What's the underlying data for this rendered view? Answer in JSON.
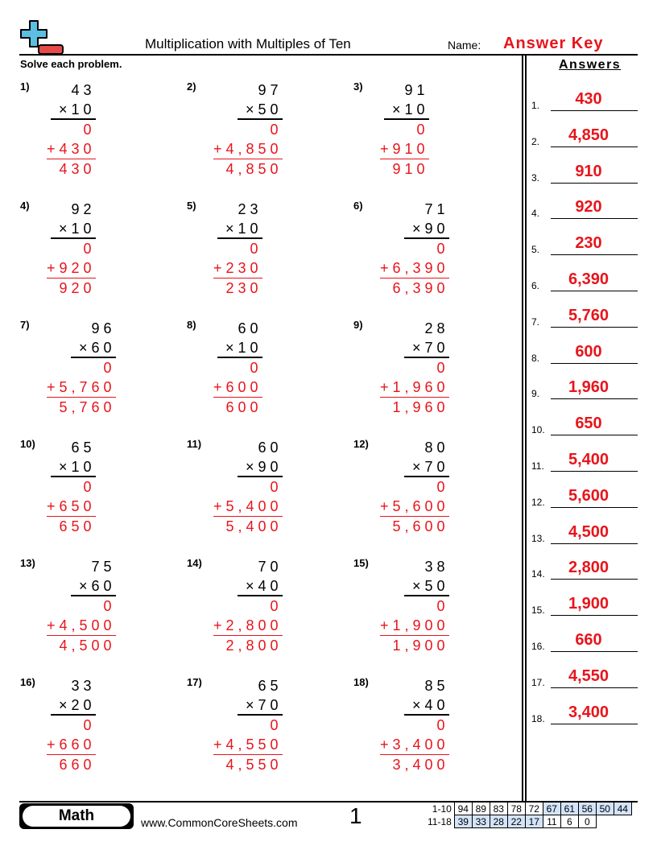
{
  "header": {
    "title": "Multiplication with Multiples of Ten",
    "name_label": "Name:",
    "name_value": "Answer Key",
    "instructions": "Solve each problem.",
    "logo_icon": "plus-minus-logo",
    "colors": {
      "accent": "#e8141b",
      "logo_blue": "#5bbfe3",
      "score_blue": "#d3e3fa"
    }
  },
  "problems": [
    {
      "label": "1)",
      "top": "43",
      "mult": "×10",
      "zero": "0",
      "partial": "+430",
      "answer": "430"
    },
    {
      "label": "2)",
      "top": "97",
      "mult": "×50",
      "zero": "0",
      "partial": "+4,850",
      "answer": "4,850"
    },
    {
      "label": "3)",
      "top": "91",
      "mult": "×10",
      "zero": "0",
      "partial": "+910",
      "answer": "910"
    },
    {
      "label": "4)",
      "top": "92",
      "mult": "×10",
      "zero": "0",
      "partial": "+920",
      "answer": "920"
    },
    {
      "label": "5)",
      "top": "23",
      "mult": "×10",
      "zero": "0",
      "partial": "+230",
      "answer": "230"
    },
    {
      "label": "6)",
      "top": "71",
      "mult": "×90",
      "zero": "0",
      "partial": "+6,390",
      "answer": "6,390"
    },
    {
      "label": "7)",
      "top": "96",
      "mult": "×60",
      "zero": "0",
      "partial": "+5,760",
      "answer": "5,760"
    },
    {
      "label": "8)",
      "top": "60",
      "mult": "×10",
      "zero": "0",
      "partial": "+600",
      "answer": "600"
    },
    {
      "label": "9)",
      "top": "28",
      "mult": "×70",
      "zero": "0",
      "partial": "+1,960",
      "answer": "1,960"
    },
    {
      "label": "10)",
      "top": "65",
      "mult": "×10",
      "zero": "0",
      "partial": "+650",
      "answer": "650"
    },
    {
      "label": "11)",
      "top": "60",
      "mult": "×90",
      "zero": "0",
      "partial": "+5,400",
      "answer": "5,400"
    },
    {
      "label": "12)",
      "top": "80",
      "mult": "×70",
      "zero": "0",
      "partial": "+5,600",
      "answer": "5,600"
    },
    {
      "label": "13)",
      "top": "75",
      "mult": "×60",
      "zero": "0",
      "partial": "+4,500",
      "answer": "4,500"
    },
    {
      "label": "14)",
      "top": "70",
      "mult": "×40",
      "zero": "0",
      "partial": "+2,800",
      "answer": "2,800"
    },
    {
      "label": "15)",
      "top": "38",
      "mult": "×50",
      "zero": "0",
      "partial": "+1,900",
      "answer": "1,900"
    },
    {
      "label": "16)",
      "top": "33",
      "mult": "×20",
      "zero": "0",
      "partial": "+660",
      "answer": "660"
    },
    {
      "label": "17)",
      "top": "65",
      "mult": "×70",
      "zero": "0",
      "partial": "+4,550",
      "answer": "4,550"
    },
    {
      "label": "18)",
      "top": "85",
      "mult": "×40",
      "zero": "0",
      "partial": "+3,400",
      "answer": "3,400"
    }
  ],
  "answers": {
    "title": "Answers",
    "items": [
      {
        "n": "1.",
        "v": "430"
      },
      {
        "n": "2.",
        "v": "4,850"
      },
      {
        "n": "3.",
        "v": "910"
      },
      {
        "n": "4.",
        "v": "920"
      },
      {
        "n": "5.",
        "v": "230"
      },
      {
        "n": "6.",
        "v": "6,390"
      },
      {
        "n": "7.",
        "v": "5,760"
      },
      {
        "n": "8.",
        "v": "600"
      },
      {
        "n": "9.",
        "v": "1,960"
      },
      {
        "n": "10.",
        "v": "650"
      },
      {
        "n": "11.",
        "v": "5,400"
      },
      {
        "n": "12.",
        "v": "5,600"
      },
      {
        "n": "13.",
        "v": "4,500"
      },
      {
        "n": "14.",
        "v": "2,800"
      },
      {
        "n": "15.",
        "v": "1,900"
      },
      {
        "n": "16.",
        "v": "660"
      },
      {
        "n": "17.",
        "v": "4,550"
      },
      {
        "n": "18.",
        "v": "3,400"
      }
    ]
  },
  "footer": {
    "subject": "Math",
    "url": "www.CommonCoreSheets.com",
    "page": "1",
    "score_rows": [
      {
        "label": "1-10",
        "cells": [
          "94",
          "89",
          "83",
          "78",
          "72",
          "67",
          "61",
          "56",
          "50",
          "44"
        ],
        "highlight_from": 5
      },
      {
        "label": "11-18",
        "cells": [
          "39",
          "33",
          "28",
          "22",
          "17",
          "11",
          "6",
          "0"
        ],
        "highlight_to": 4
      }
    ]
  }
}
